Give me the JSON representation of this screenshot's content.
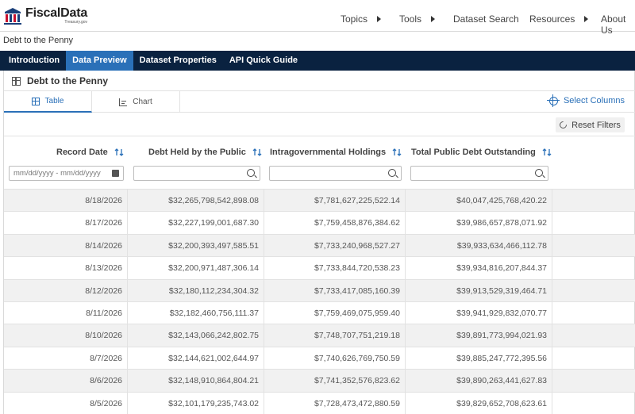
{
  "header": {
    "logo_name": "FiscalData",
    "logo_sub": "Treasury.gov",
    "nav": [
      {
        "label": "Topics"
      },
      {
        "label": "Tools"
      },
      {
        "label": "Dataset Search"
      },
      {
        "label": "Resources"
      },
      {
        "label": "About Us"
      }
    ]
  },
  "breadcrumb": "Debt to the Penny",
  "tabbar": [
    {
      "label": "Introduction"
    },
    {
      "label": "Data Preview"
    },
    {
      "label": "Dataset Properties"
    },
    {
      "label": "API Quick Guide"
    }
  ],
  "panel": {
    "title": "Debt to the Penny",
    "view_tabs": [
      {
        "label": "Table"
      },
      {
        "label": "Chart"
      }
    ],
    "select_columns": "Select Columns",
    "reset_filters": "Reset Filters"
  },
  "table": {
    "columns": [
      "Record Date",
      "Debt Held by the Public",
      "Intragovernmental Holdings",
      "Total Public Debt Outstanding"
    ],
    "date_filter_placeholder": "mm/dd/yyyy - mm/dd/yyyy",
    "rows": [
      [
        "8/18/2026",
        "$32,265,798,542,898.08",
        "$7,781,627,225,522.14",
        "$40,047,425,768,420.22"
      ],
      [
        "8/17/2026",
        "$32,227,199,001,687.30",
        "$7,759,458,876,384.62",
        "$39,986,657,878,071.92"
      ],
      [
        "8/14/2026",
        "$32,200,393,497,585.51",
        "$7,733,240,968,527.27",
        "$39,933,634,466,112.78"
      ],
      [
        "8/13/2026",
        "$32,200,971,487,306.14",
        "$7,733,844,720,538.23",
        "$39,934,816,207,844.37"
      ],
      [
        "8/12/2026",
        "$32,180,112,234,304.32",
        "$7,733,417,085,160.39",
        "$39,913,529,319,464.71"
      ],
      [
        "8/11/2026",
        "$32,182,460,756,111.37",
        "$7,759,469,075,959.40",
        "$39,941,929,832,070.77"
      ],
      [
        "8/10/2026",
        "$32,143,066,242,802.75",
        "$7,748,707,751,219.18",
        "$39,891,773,994,021.93"
      ],
      [
        "8/7/2026",
        "$32,144,621,002,644.97",
        "$7,740,626,769,750.59",
        "$39,885,247,772,395.56"
      ],
      [
        "8/6/2026",
        "$32,148,910,864,804.21",
        "$7,741,352,576,823.62",
        "$39,890,263,441,627.83"
      ],
      [
        "8/5/2026",
        "$32,101,179,235,743.02",
        "$7,728,473,472,880.59",
        "$39,829,652,708,623.61"
      ]
    ]
  },
  "colors": {
    "navy": "#0a2240",
    "accent": "#2a70b8",
    "stripe": "#f1f1f1"
  }
}
